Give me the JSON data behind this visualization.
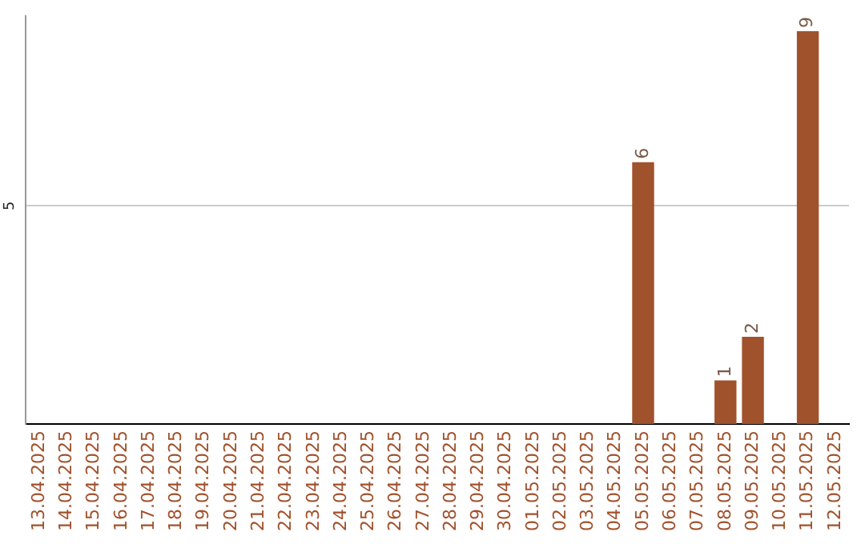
{
  "chart_data": {
    "type": "bar",
    "categories": [
      "13.04.2025",
      "14.04.2025",
      "15.04.2025",
      "16.04.2025",
      "17.04.2025",
      "18.04.2025",
      "19.04.2025",
      "20.04.2025",
      "21.04.2025",
      "22.04.2025",
      "23.04.2025",
      "24.04.2025",
      "25.04.2025",
      "26.04.2025",
      "27.04.2025",
      "28.04.2025",
      "29.04.2025",
      "30.04.2025",
      "01.05.2025",
      "02.05.2025",
      "03.05.2025",
      "04.05.2025",
      "05.05.2025",
      "06.05.2025",
      "07.05.2025",
      "08.05.2025",
      "09.05.2025",
      "10.05.2025",
      "11.05.2025",
      "12.05.2025"
    ],
    "values": [
      null,
      null,
      null,
      null,
      null,
      null,
      null,
      null,
      null,
      null,
      null,
      null,
      null,
      null,
      null,
      null,
      null,
      null,
      null,
      null,
      null,
      null,
      6,
      null,
      null,
      1,
      2,
      null,
      9,
      null
    ],
    "data_labels": true,
    "color": "#a0522d",
    "ylim": [
      0,
      9.35
    ],
    "yticks": [
      5
    ],
    "grid": "y",
    "legend": false
  }
}
